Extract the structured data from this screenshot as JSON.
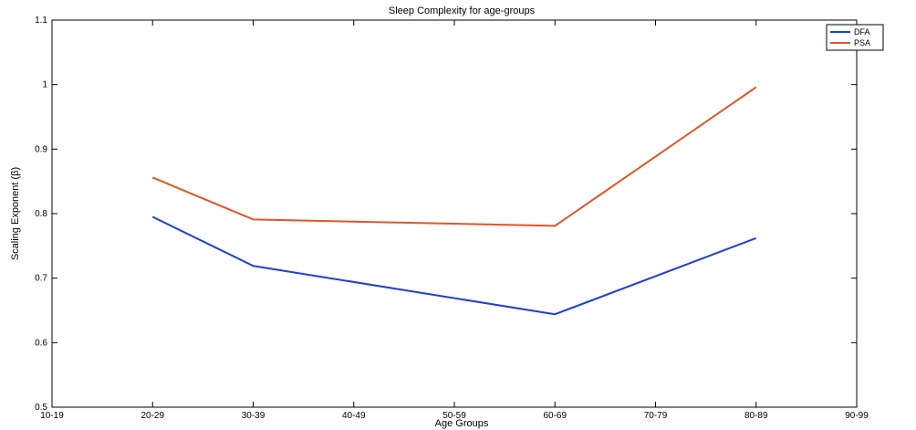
{
  "chart_data": {
    "type": "line",
    "title": "Sleep Complexity for age-groups",
    "xlabel": "Age Groups",
    "ylabel": "Scaling Exponent (β)",
    "categories": [
      "10-19",
      "20-29",
      "30-39",
      "40-49",
      "50-59",
      "60-69",
      "70-79",
      "80-89",
      "90-99"
    ],
    "ylim": [
      0.5,
      1.1
    ],
    "yticks": [
      0.5,
      0.6,
      0.7,
      0.8,
      0.9,
      1,
      1.1
    ],
    "series": [
      {
        "name": "DFA",
        "color": "#1f3fd1",
        "points": [
          [
            "20-29",
            0.795
          ],
          [
            "30-39",
            0.719
          ],
          [
            "60-69",
            0.644
          ],
          [
            "80-89",
            0.762
          ]
        ]
      },
      {
        "name": "PSA",
        "color": "#e0562a",
        "points": [
          [
            "20-29",
            0.856
          ],
          [
            "30-39",
            0.791
          ],
          [
            "60-69",
            0.781
          ],
          [
            "80-89",
            0.996
          ]
        ]
      }
    ],
    "legend_position": "top-right",
    "grid": false
  }
}
